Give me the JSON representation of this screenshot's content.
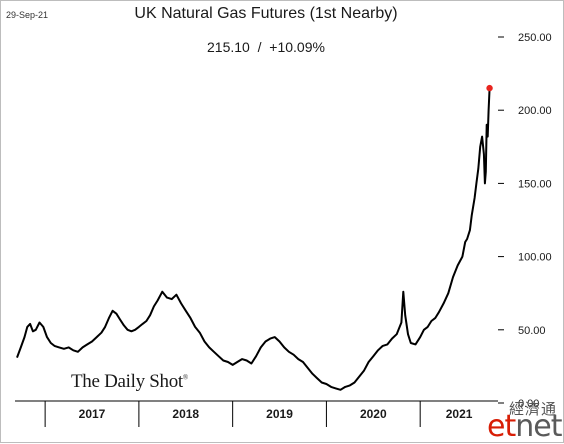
{
  "header": {
    "date": "29-Sep-21",
    "title": "UK Natural Gas Futures (1st Nearby)",
    "last_value": "215.10",
    "separator": "/",
    "change": "+10.09%"
  },
  "watermarks": {
    "logo": "The Daily Shot",
    "logo_mark": "®",
    "cn": "經濟通",
    "en_prefix": "et",
    "en_suffix": "net"
  },
  "colors": {
    "line": "#000000",
    "last_point": "#e8251f",
    "axis": "#000000"
  },
  "chart_data": {
    "type": "line",
    "title": "UK Natural Gas Futures (1st Nearby)",
    "xlabel": "",
    "ylabel": "",
    "ylim": [
      0,
      250
    ],
    "y_ticks": [
      "0.00",
      "50.00",
      "100.00",
      "150.00",
      "200.00",
      "250.00"
    ],
    "y_tick_values": [
      0,
      50,
      100,
      150,
      200,
      250
    ],
    "x_categories": [
      "2017",
      "2018",
      "2019",
      "2020",
      "2021"
    ],
    "x_year_bounds": [
      2016.7,
      2017.0,
      2018.0,
      2019.0,
      2020.0,
      2021.0,
      2021.83
    ],
    "grid": false,
    "legend": "none",
    "last_point": {
      "x": 2021.74,
      "y": 215.1
    },
    "series": [
      {
        "x": [
          2016.7,
          2016.74,
          2016.78,
          2016.81,
          2016.84,
          2016.87,
          2016.9,
          2016.94,
          2016.98,
          2017.02,
          2017.06,
          2017.1,
          2017.15,
          2017.2,
          2017.25,
          2017.3,
          2017.35,
          2017.4,
          2017.45,
          2017.5,
          2017.55,
          2017.6,
          2017.64,
          2017.68,
          2017.72,
          2017.76,
          2017.8,
          2017.84,
          2017.88,
          2017.92,
          2017.96,
          2018.0,
          2018.04,
          2018.08,
          2018.12,
          2018.16,
          2018.2,
          2018.25,
          2018.3,
          2018.35,
          2018.4,
          2018.45,
          2018.5,
          2018.55,
          2018.6,
          2018.65,
          2018.7,
          2018.75,
          2018.8,
          2018.85,
          2018.9,
          2018.95,
          2019.0,
          2019.05,
          2019.1,
          2019.15,
          2019.2,
          2019.25,
          2019.3,
          2019.35,
          2019.4,
          2019.45,
          2019.5,
          2019.55,
          2019.6,
          2019.65,
          2019.7,
          2019.75,
          2019.8,
          2019.85,
          2019.9,
          2019.95,
          2020.0,
          2020.05,
          2020.1,
          2020.15,
          2020.2,
          2020.25,
          2020.3,
          2020.35,
          2020.4,
          2020.45,
          2020.5,
          2020.55,
          2020.6,
          2020.65,
          2020.7,
          2020.75,
          2020.8,
          2020.82,
          2020.84,
          2020.87,
          2020.9,
          2020.95,
          2021.0,
          2021.04,
          2021.08,
          2021.12,
          2021.16,
          2021.2,
          2021.25,
          2021.3,
          2021.35,
          2021.4,
          2021.45,
          2021.48,
          2021.5,
          2021.53,
          2021.55,
          2021.58,
          2021.6,
          2021.62,
          2021.64,
          2021.66,
          2021.68,
          2021.69,
          2021.7,
          2021.71,
          2021.72,
          2021.73,
          2021.74
        ],
        "values": [
          31,
          38,
          45,
          52,
          54,
          49,
          50,
          55,
          52,
          45,
          41,
          39,
          38,
          37,
          38,
          36,
          35,
          38,
          40,
          42,
          45,
          48,
          52,
          58,
          63,
          61,
          57,
          53,
          50,
          49,
          50,
          52,
          54,
          56,
          60,
          66,
          70,
          76,
          72,
          71,
          74,
          68,
          63,
          58,
          52,
          48,
          42,
          38,
          35,
          32,
          29,
          28,
          26,
          28,
          30,
          29,
          27,
          32,
          38,
          42,
          44,
          45,
          42,
          38,
          35,
          33,
          30,
          28,
          24,
          20,
          17,
          14,
          13,
          11,
          10,
          9,
          11,
          12,
          14,
          18,
          22,
          28,
          32,
          36,
          39,
          40,
          44,
          47,
          55,
          76,
          60,
          47,
          41,
          40,
          45,
          50,
          52,
          56,
          58,
          62,
          68,
          75,
          86,
          94,
          100,
          110,
          112,
          118,
          128,
          140,
          150,
          160,
          175,
          182,
          170,
          150,
          158,
          190,
          182,
          200,
          215.1
        ]
      }
    ]
  }
}
